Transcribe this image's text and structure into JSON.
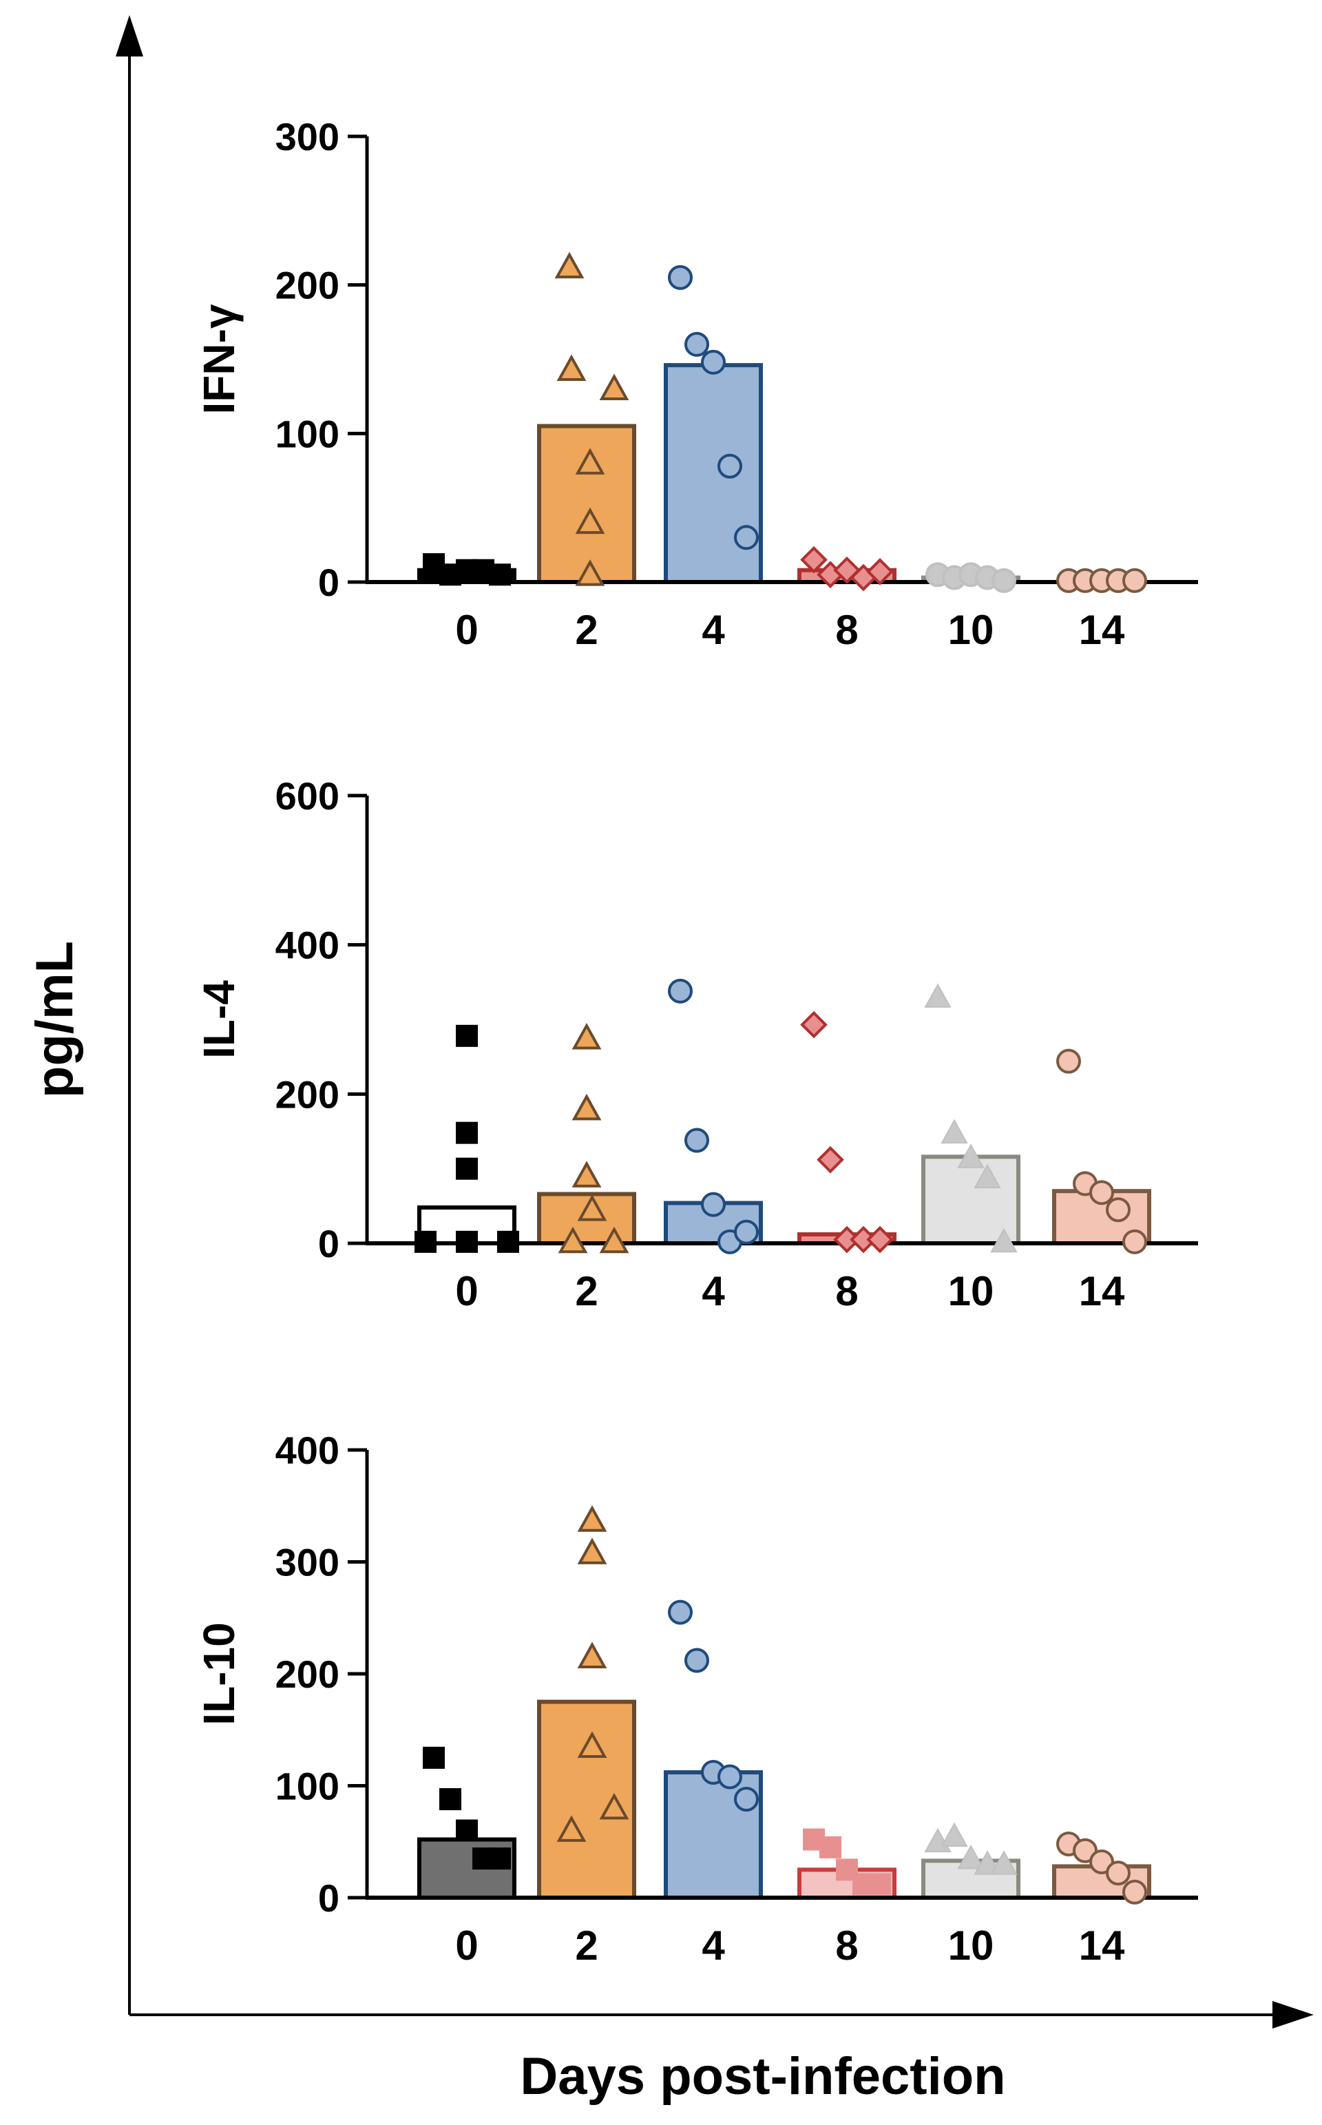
{
  "figure": {
    "y_axis_label": "pg/mL",
    "x_axis_label": "Days post-infection"
  },
  "chart_data": [
    {
      "type": "bar",
      "title": "IFN-γ",
      "ylabel": "IFN-γ",
      "xlabel": "",
      "categories": [
        "0",
        "2",
        "4",
        "8",
        "10",
        "14"
      ],
      "ylim": [
        0,
        300
      ],
      "yticks": [
        "0",
        "100",
        "200",
        "300"
      ],
      "bars": [
        8,
        105,
        146,
        8,
        3,
        0
      ],
      "points": [
        [
          12,
          5,
          8,
          8,
          5
        ],
        [
          212,
          143,
          130,
          80,
          40,
          5
        ],
        [
          205,
          160,
          148,
          78,
          30
        ],
        [
          15,
          5,
          8,
          3,
          7
        ],
        [
          5,
          3,
          5,
          3,
          1
        ],
        [
          1,
          1,
          1,
          1,
          1
        ]
      ],
      "markers": [
        "square",
        "triangle-open",
        "circle",
        "diamond",
        "circle",
        "circle"
      ],
      "bar_fill": [
        "#000000",
        "#eda65a",
        "#9ab5d6",
        "#e89090",
        "#d8d8d8",
        "#f3c4b4"
      ],
      "bar_stroke": [
        "#000000",
        "#6b4a2b",
        "#1f4a7c",
        "#b03030",
        "#8a8a8a",
        "#7a5a40"
      ],
      "marker_fill": [
        "#000000",
        "#eda65a",
        "#9ab5d6",
        "#e89090",
        "#c8c8c8",
        "#f3c4b4"
      ],
      "marker_stroke": [
        "#000000",
        "#6b4a2b",
        "#1f4a7c",
        "#b03030",
        "#c0c0c0",
        "#7a5a40"
      ]
    },
    {
      "type": "bar",
      "title": "IL-4",
      "ylabel": "IL-4",
      "xlabel": "",
      "categories": [
        "0",
        "2",
        "4",
        "8",
        "10",
        "14"
      ],
      "ylim": [
        0,
        600
      ],
      "yticks": [
        "0",
        "200",
        "400",
        "600"
      ],
      "bars": [
        48,
        66,
        54,
        12,
        116,
        70
      ],
      "points": [
        [
          278,
          148,
          100,
          2,
          2,
          2
        ],
        [
          275,
          180,
          90,
          45,
          2,
          2
        ],
        [
          338,
          138,
          52,
          2,
          15
        ],
        [
          293,
          112,
          5,
          5,
          5
        ],
        [
          330,
          148,
          115,
          88,
          2
        ],
        [
          244,
          80,
          68,
          45,
          2
        ]
      ],
      "markers": [
        "square",
        "triangle-open",
        "circle",
        "diamond",
        "triangle",
        "circle"
      ],
      "bar_fill": [
        "#ffffff",
        "#eda65a",
        "#9ab5d6",
        "#e89090",
        "#e2e2e2",
        "#f3c4b4"
      ],
      "bar_stroke": [
        "#000000",
        "#6b4a2b",
        "#1f4a7c",
        "#b03030",
        "#8a8a80",
        "#7a5a40"
      ],
      "marker_fill": [
        "#000000",
        "#eda65a",
        "#9ab5d6",
        "#e89090",
        "#c8c8c8",
        "#f3c4b4"
      ],
      "marker_stroke": [
        "#000000",
        "#6b4a2b",
        "#1f4a7c",
        "#b03030",
        "#c0c0c0",
        "#7a5a40"
      ]
    },
    {
      "type": "bar",
      "title": "IL-10",
      "ylabel": "IL-10",
      "xlabel": "",
      "categories": [
        "0",
        "2",
        "4",
        "8",
        "10",
        "14"
      ],
      "ylim": [
        0,
        400
      ],
      "yticks": [
        "0",
        "100",
        "200",
        "300",
        "400"
      ],
      "bars": [
        52,
        175,
        112,
        25,
        33,
        28
      ],
      "points": [
        [
          125,
          88,
          60,
          35,
          35
        ],
        [
          337,
          308,
          215,
          135,
          80,
          60
        ],
        [
          255,
          212,
          112,
          108,
          88
        ],
        [
          52,
          45,
          25,
          12,
          12
        ],
        [
          50,
          55,
          35,
          30,
          30
        ],
        [
          48,
          42,
          32,
          22,
          5
        ]
      ],
      "markers": [
        "square",
        "triangle-open",
        "circle",
        "square",
        "triangle",
        "circle"
      ],
      "bar_fill": [
        "#707070",
        "#eda65a",
        "#9ab5d6",
        "#f5c2c2",
        "#e2e2e2",
        "#f3c4b4"
      ],
      "bar_stroke": [
        "#000000",
        "#6b4a2b",
        "#1f4a7c",
        "#c83c3c",
        "#8a8a80",
        "#7a5a40"
      ],
      "marker_fill": [
        "#000000",
        "#eda65a",
        "#9ab5d6",
        "#e89090",
        "#c8c8c8",
        "#f3c4b4"
      ],
      "marker_stroke": [
        "#000000",
        "#6b4a2b",
        "#1f4a7c",
        "#e89090",
        "#c0c0c0",
        "#7a5a40"
      ]
    }
  ]
}
